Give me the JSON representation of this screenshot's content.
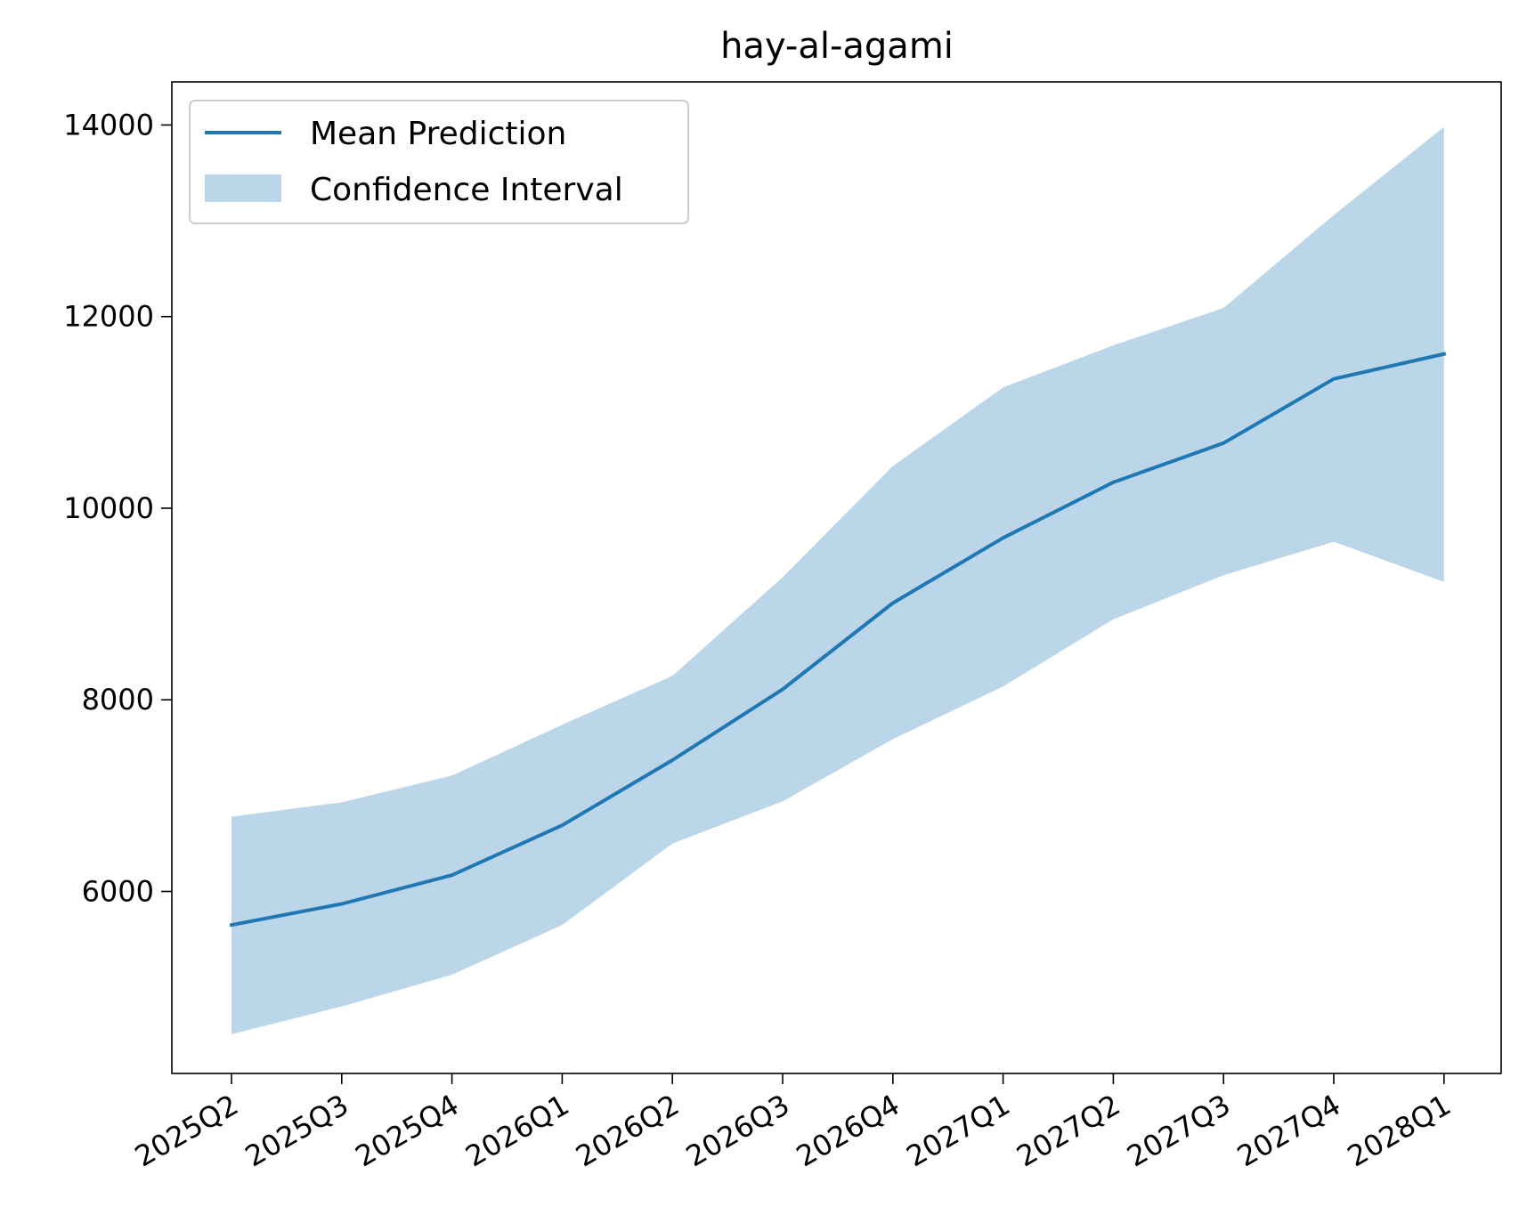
{
  "chart_data": {
    "type": "line",
    "title": "hay-al-agami",
    "xlabel": "",
    "ylabel": "",
    "categories": [
      "2025Q2",
      "2025Q3",
      "2025Q4",
      "2026Q1",
      "2026Q2",
      "2026Q3",
      "2026Q4",
      "2027Q1",
      "2027Q2",
      "2027Q3",
      "2027Q4",
      "2028Q1"
    ],
    "series": [
      {
        "name": "Mean Prediction",
        "values": [
          5650,
          5870,
          6170,
          6690,
          7370,
          8110,
          9010,
          9690,
          10270,
          10680,
          11350,
          11610
        ],
        "color": "#1f77b4"
      }
    ],
    "confidence_interval": {
      "name": "Confidence Interval",
      "lower": [
        4510,
        4800,
        5130,
        5650,
        6500,
        6940,
        7590,
        8140,
        8840,
        9300,
        9650,
        9230
      ],
      "upper": [
        6780,
        6930,
        7210,
        7740,
        8250,
        9280,
        10440,
        11260,
        11700,
        12090,
        13060,
        13980
      ],
      "color": "#1f77b4",
      "alpha": 0.3
    },
    "yticks": [
      6000,
      8000,
      10000,
      12000,
      14000
    ],
    "ylim": [
      4100,
      14450
    ],
    "grid": false,
    "legend_position": "top-left"
  }
}
